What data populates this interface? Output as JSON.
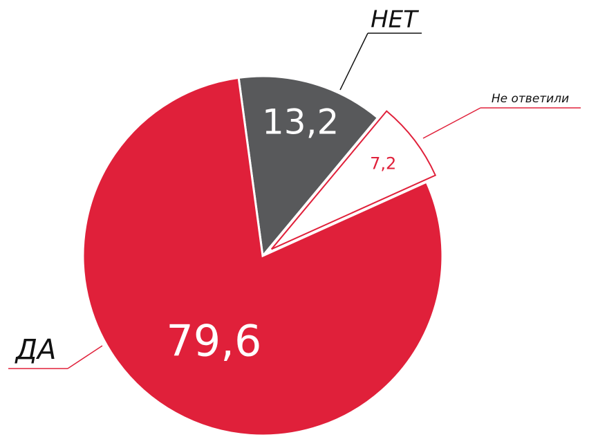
{
  "chart_data": {
    "type": "pie",
    "categories": [
      "НЕТ",
      "Не ответили",
      "ДА"
    ],
    "values": [
      13.2,
      7.2,
      79.6
    ],
    "value_labels": [
      "13,2",
      "7,2",
      "79,6"
    ],
    "colors": [
      "#58595b",
      "#ffffff",
      "#e0203a"
    ]
  }
}
